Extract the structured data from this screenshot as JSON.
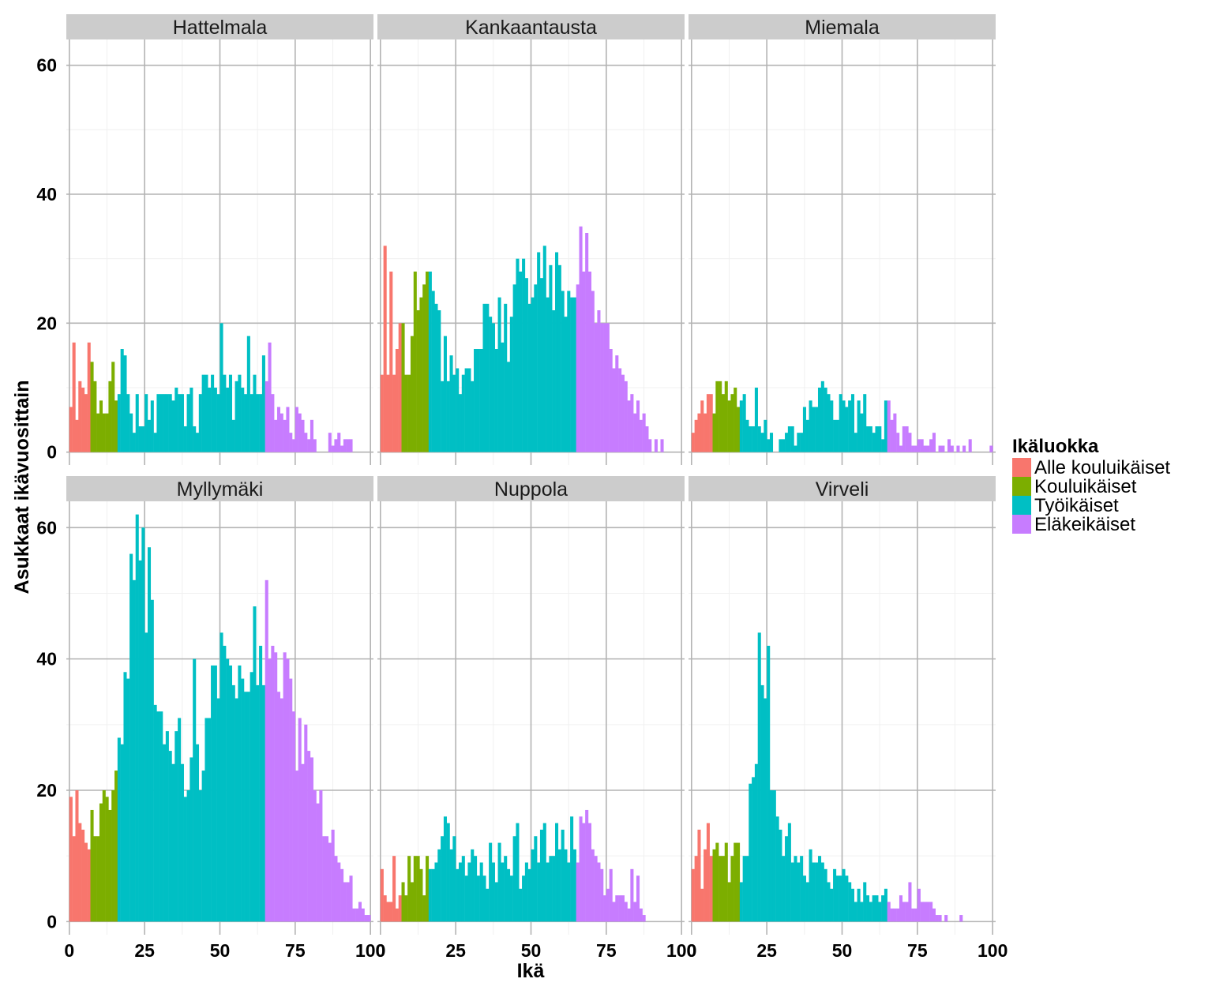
{
  "chart_data": {
    "type": "bar",
    "xlabel": "Ikä",
    "ylabel": "Asukkaat ikävuosittain",
    "xlim": [
      -1,
      101
    ],
    "ylim": [
      -2,
      64
    ],
    "x_ticks": [
      0,
      25,
      50,
      75,
      100
    ],
    "y_ticks": [
      0,
      20,
      40,
      60
    ],
    "grid": true,
    "legend": {
      "title": "Ikäluokka",
      "position": "right",
      "entries": [
        {
          "label": "Alle kouluikäiset",
          "color": "#F8766D",
          "from_age": 0,
          "to_age": 6
        },
        {
          "label": "Kouluikäiset",
          "color": "#7CAE00",
          "from_age": 7,
          "to_age": 15
        },
        {
          "label": "Työikäiset",
          "color": "#00BFC4",
          "from_age": 16,
          "to_age": 64
        },
        {
          "label": "Eläkeikäiset",
          "color": "#C77CFF",
          "from_age": 65,
          "to_age": 100
        }
      ]
    },
    "panels": [
      {
        "name": "Hattelmala",
        "values": [
          7,
          17,
          5,
          11,
          10,
          9,
          17,
          14,
          11,
          6,
          8,
          6,
          6,
          11,
          14,
          8,
          9,
          16,
          15,
          9,
          6,
          3,
          9,
          4,
          4,
          9,
          5,
          8,
          3,
          9,
          9,
          9,
          9,
          9,
          8,
          10,
          9,
          9,
          4,
          9,
          10,
          4,
          3,
          9,
          12,
          12,
          10,
          12,
          10,
          9,
          20,
          12,
          10,
          12,
          5,
          11,
          12,
          10,
          9,
          18,
          9,
          12,
          9,
          9,
          15,
          11,
          17,
          9,
          5,
          7,
          6,
          5,
          7,
          3,
          2,
          7,
          6,
          5,
          3,
          2,
          5,
          2,
          0,
          0,
          0,
          0,
          3,
          1,
          2,
          3,
          1,
          2,
          2,
          2,
          0,
          0,
          0,
          0,
          0,
          0,
          0
        ]
      },
      {
        "name": "Kankaantausta",
        "values": [
          12,
          32,
          12,
          28,
          12,
          16,
          20,
          20,
          12,
          12,
          18,
          28,
          22,
          24,
          26,
          28,
          28,
          25,
          23,
          22,
          11,
          18,
          11,
          15,
          12,
          13,
          9,
          12,
          13,
          13,
          11,
          16,
          16,
          16,
          23,
          23,
          21,
          20,
          16,
          24,
          17,
          23,
          14,
          21,
          26,
          30,
          28,
          30,
          27,
          23,
          24,
          26,
          31,
          27,
          32,
          24,
          29,
          22,
          31,
          29,
          25,
          21,
          25,
          24,
          24,
          26,
          35,
          28,
          34,
          28,
          25,
          20,
          22,
          20,
          20,
          20,
          16,
          13,
          15,
          13,
          12,
          11,
          8,
          9,
          6,
          8,
          5,
          6,
          4,
          2,
          0,
          2,
          0,
          2,
          0,
          0,
          0,
          0,
          0,
          0,
          0
        ]
      },
      {
        "name": "Miemala",
        "values": [
          3,
          5,
          6,
          8,
          6,
          9,
          9,
          6,
          11,
          11,
          9,
          11,
          8,
          9,
          10,
          7,
          8,
          9,
          5,
          4,
          4,
          10,
          4,
          3,
          5,
          2,
          3,
          0,
          0,
          2,
          2,
          3,
          4,
          4,
          1,
          3,
          3,
          7,
          5,
          8,
          7,
          7,
          10,
          11,
          10,
          9,
          8,
          5,
          5,
          9,
          8,
          7,
          8,
          9,
          3,
          8,
          6,
          9,
          4,
          4,
          3,
          4,
          4,
          2,
          8,
          8,
          5,
          6,
          3,
          1,
          4,
          4,
          3,
          1,
          1,
          2,
          2,
          1,
          1,
          2,
          3,
          0,
          1,
          1,
          0,
          2,
          1,
          0,
          1,
          0,
          1,
          0,
          2,
          0,
          0,
          0,
          0,
          0,
          0,
          1,
          0
        ]
      },
      {
        "name": "Myllymäki",
        "values": [
          19,
          13,
          20,
          15,
          14,
          12,
          11,
          17,
          13,
          13,
          18,
          20,
          19,
          17,
          20,
          23,
          28,
          27,
          38,
          37,
          56,
          52,
          62,
          55,
          60,
          44,
          57,
          49,
          33,
          32,
          32,
          27,
          29,
          26,
          24,
          29,
          31,
          24,
          19,
          20,
          25,
          40,
          27,
          20,
          23,
          31,
          31,
          39,
          39,
          34,
          44,
          42,
          40,
          39,
          36,
          34,
          39,
          37,
          35,
          35,
          38,
          48,
          36,
          42,
          36,
          52,
          40,
          42,
          41,
          35,
          34,
          41,
          40,
          37,
          32,
          23,
          31,
          24,
          30,
          26,
          25,
          20,
          18,
          20,
          13,
          13,
          12,
          14,
          10,
          9,
          8,
          6,
          6,
          7,
          2,
          2,
          3,
          2,
          1,
          1,
          0
        ]
      },
      {
        "name": "Nuppola",
        "values": [
          8,
          4,
          3,
          3,
          10,
          2,
          4,
          6,
          4,
          10,
          6,
          10,
          10,
          8,
          4,
          10,
          8,
          8,
          9,
          11,
          13,
          16,
          15,
          11,
          13,
          8,
          9,
          10,
          7,
          9,
          11,
          10,
          7,
          9,
          7,
          5,
          12,
          9,
          6,
          12,
          9,
          10,
          8,
          7,
          13,
          15,
          5,
          7,
          9,
          8,
          11,
          13,
          9,
          14,
          15,
          9,
          10,
          10,
          15,
          11,
          14,
          11,
          9,
          16,
          11,
          9,
          16,
          15,
          17,
          15,
          11,
          10,
          9,
          8,
          4,
          5,
          8,
          3,
          4,
          4,
          4,
          3,
          2,
          8,
          3,
          7,
          2,
          1,
          0,
          0,
          0,
          0,
          0,
          0,
          0,
          0,
          0,
          0,
          0,
          0,
          0
        ]
      },
      {
        "name": "Virveli",
        "values": [
          8,
          10,
          14,
          5,
          11,
          15,
          10,
          11,
          12,
          10,
          10,
          12,
          6,
          10,
          12,
          12,
          6,
          10,
          10,
          21,
          22,
          24,
          44,
          36,
          34,
          42,
          20,
          20,
          16,
          14,
          10,
          13,
          15,
          9,
          10,
          9,
          10,
          7,
          6,
          11,
          9,
          9,
          10,
          9,
          8,
          6,
          5,
          8,
          7,
          7,
          8,
          7,
          6,
          5,
          3,
          5,
          3,
          6,
          4,
          3,
          4,
          4,
          3,
          4,
          5,
          3,
          2,
          2,
          2,
          4,
          3,
          3,
          6,
          2,
          2,
          5,
          3,
          3,
          3,
          3,
          2,
          1,
          1,
          0,
          1,
          0,
          0,
          0,
          0,
          1,
          0,
          0,
          0,
          0,
          0,
          0,
          0,
          0,
          0,
          0,
          0
        ]
      }
    ]
  }
}
